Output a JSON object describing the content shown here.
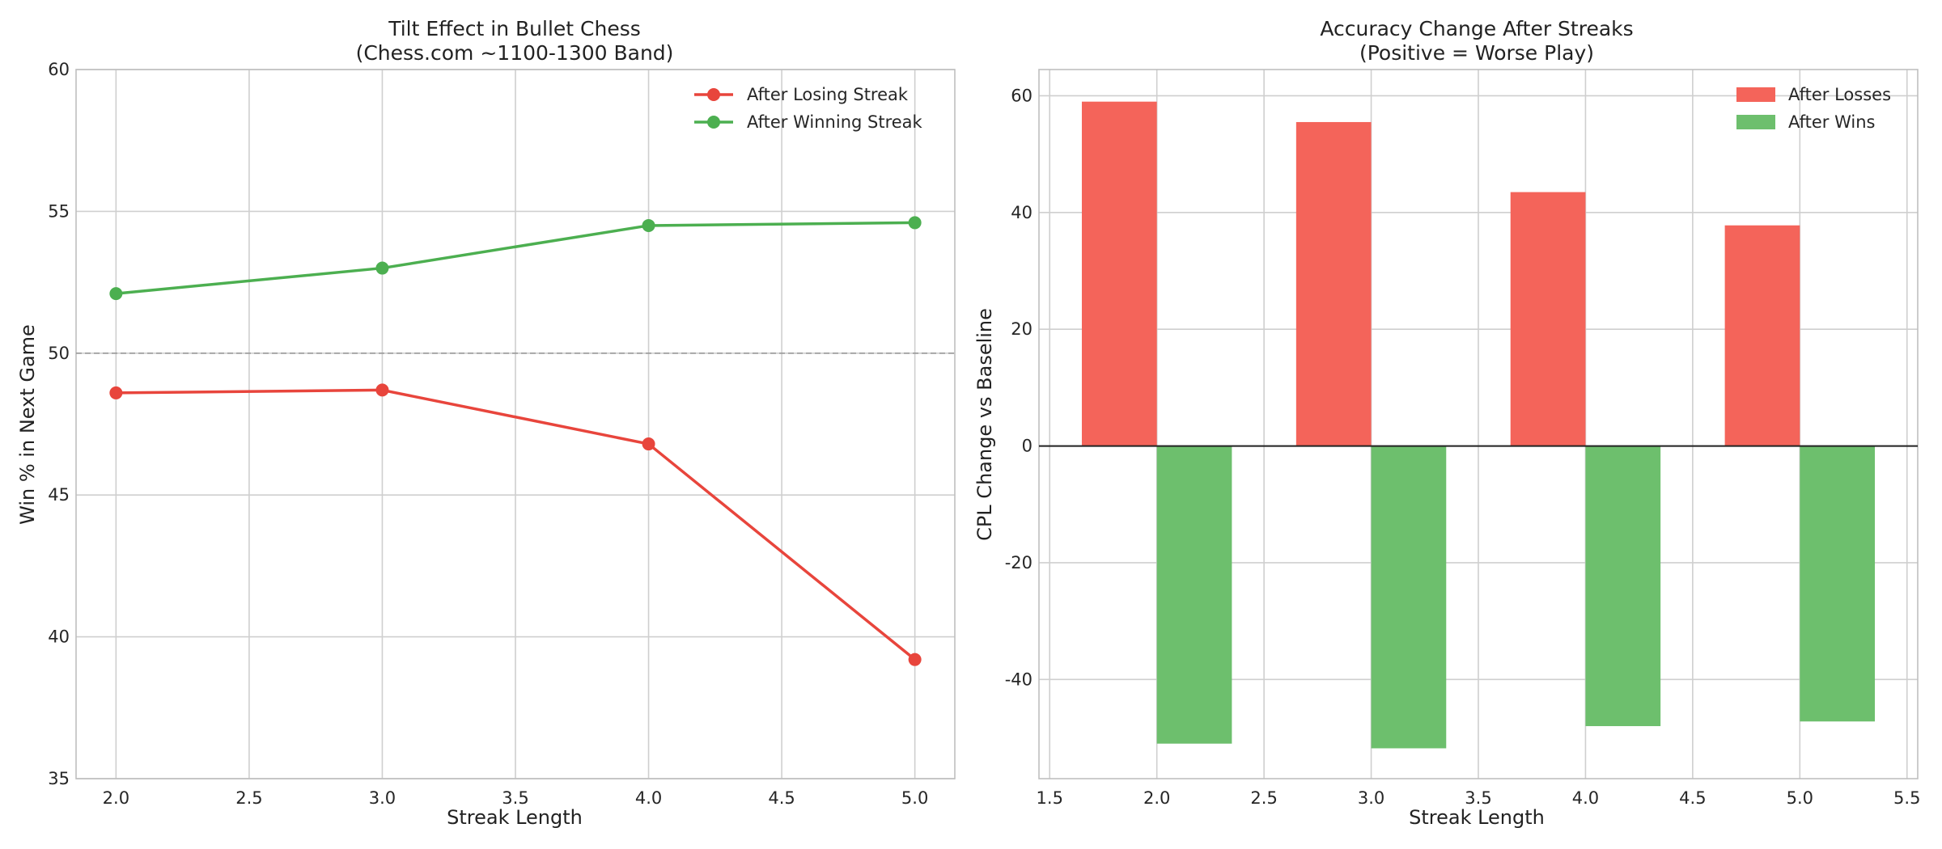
{
  "chart_data": [
    {
      "type": "line",
      "title": "Tilt Effect in Bullet Chess",
      "subtitle": "(Chess.com ~1100-1300 Band)",
      "xlabel": "Streak Length",
      "ylabel": "Win % in Next Game",
      "xlim": [
        1.85,
        5.15
      ],
      "ylim": [
        35,
        60
      ],
      "xticks": [
        "2.0",
        "2.5",
        "3.0",
        "3.5",
        "4.0",
        "4.5",
        "5.0"
      ],
      "yticks": [
        "35",
        "40",
        "45",
        "50",
        "55",
        "60"
      ],
      "grid": true,
      "legend_position": "top-right",
      "reference_line": {
        "y": 50,
        "style": "dashed",
        "color": "#999999"
      },
      "x": [
        2,
        3,
        4,
        5
      ],
      "series": [
        {
          "name": "After Losing Streak",
          "values": [
            48.6,
            48.7,
            46.8,
            39.2
          ],
          "color": "#e8453c"
        },
        {
          "name": "After Winning Streak",
          "values": [
            52.1,
            53.0,
            54.5,
            54.6
          ],
          "color": "#4caf50"
        }
      ]
    },
    {
      "type": "bar",
      "title": "Accuracy Change After Streaks",
      "subtitle": "(Positive = Worse Play)",
      "xlabel": "Streak Length",
      "ylabel": "CPL Change vs Baseline",
      "xlim": [
        1.45,
        5.55
      ],
      "ylim": [
        -57,
        64.5
      ],
      "xticks": [
        "1.5",
        "2.0",
        "2.5",
        "3.0",
        "3.5",
        "4.0",
        "4.5",
        "5.0",
        "5.5"
      ],
      "yticks": [
        "-40",
        "-20",
        "0",
        "20",
        "40",
        "60"
      ],
      "grid": true,
      "legend_position": "top-right",
      "zero_line": true,
      "x": [
        2,
        3,
        4,
        5
      ],
      "bar_width": 0.35,
      "series": [
        {
          "name": "After Losses",
          "values": [
            59.0,
            55.5,
            43.5,
            37.8
          ],
          "color": "#f4645a"
        },
        {
          "name": "After Wins",
          "values": [
            -51.0,
            -51.8,
            -48.0,
            -47.2
          ],
          "color": "#6dbf6d"
        }
      ]
    }
  ]
}
